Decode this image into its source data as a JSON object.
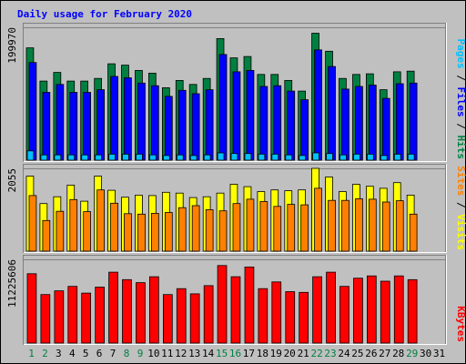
{
  "chart_data": {
    "type": "bar",
    "title": "Daily usage for February 2020",
    "x": [
      1,
      2,
      3,
      4,
      5,
      6,
      7,
      8,
      9,
      10,
      11,
      12,
      13,
      14,
      15,
      16,
      17,
      18,
      19,
      20,
      21,
      22,
      23,
      24,
      25,
      26,
      27,
      28,
      29,
      30,
      31
    ],
    "weekend_days": [
      1,
      2,
      8,
      9,
      15,
      16,
      22,
      23,
      29
    ],
    "panels": [
      {
        "id": "hits-panel",
        "ytick": "199970",
        "ymax": 199970,
        "right_labels": [
          {
            "text": "Hits",
            "color": "#008040"
          },
          {
            "text": "Files",
            "color": "#0000ff"
          },
          {
            "text": "Pages",
            "color": "#00c0ff"
          }
        ],
        "series": [
          {
            "name": "Hits",
            "color": "#008040",
            "values": [
              169000,
              119000,
              132000,
              119000,
              119000,
              123000,
              145000,
              143000,
              135000,
              131000,
              109000,
              120000,
              114000,
              123000,
              183000,
              154000,
              156000,
              129000,
              129000,
              120000,
              104000,
              191000,
              164000,
              123000,
              129000,
              130000,
              106000,
              133000,
              134000,
              null,
              null
            ]
          },
          {
            "name": "Files",
            "color": "#0000ff",
            "values": [
              147000,
              102000,
              114000,
              102000,
              102000,
              106000,
              126000,
              124000,
              116000,
              112000,
              96000,
              105000,
              100000,
              106000,
              159000,
              133000,
              135000,
              111000,
              112000,
              104000,
              91000,
              166000,
              141000,
              107000,
              111000,
              113000,
              93000,
              115000,
              116000,
              null,
              null
            ]
          },
          {
            "name": "Pages",
            "color": "#00c0ff",
            "values": [
              14000,
              8000,
              8000,
              8000,
              8000,
              8000,
              9000,
              9000,
              9000,
              8000,
              7000,
              8000,
              7000,
              8000,
              11000,
              10000,
              10000,
              9000,
              9000,
              8000,
              7000,
              11000,
              10000,
              8000,
              9000,
              9000,
              7000,
              9000,
              9000,
              null,
              null
            ]
          }
        ]
      },
      {
        "id": "visits-panel",
        "ytick": "2055",
        "ymax": 2055,
        "right_labels": [
          {
            "text": "Visits",
            "color": "#ffff00"
          },
          {
            "text": "Sites",
            "color": "#ff8000"
          }
        ],
        "series": [
          {
            "name": "Visits",
            "color": "#ffff00",
            "values": [
              1860,
              1180,
              1350,
              1640,
              1240,
              1860,
              1510,
              1340,
              1390,
              1380,
              1460,
              1440,
              1330,
              1350,
              1440,
              1660,
              1600,
              1480,
              1520,
              1500,
              1520,
              2055,
              1840,
              1480,
              1660,
              1610,
              1560,
              1700,
              1390,
              null,
              null
            ]
          },
          {
            "name": "Sites",
            "color": "#ff8000",
            "values": [
              1380,
              760,
              990,
              1280,
              980,
              1520,
              1190,
              930,
              920,
              940,
              960,
              1080,
              1130,
              1030,
              1000,
              1180,
              1290,
              1230,
              1110,
              1160,
              1150,
              1560,
              1260,
              1260,
              1300,
              1290,
              1220,
              1250,
              920,
              null,
              null
            ]
          }
        ]
      },
      {
        "id": "kbytes-panel",
        "ytick": "11225606",
        "ymax": 11225606,
        "right_labels": [
          {
            "text": "KBytes",
            "color": "#ff0000"
          }
        ],
        "series": [
          {
            "name": "KBytes",
            "color": "#ff0000",
            "values": [
              9300000,
              6500000,
              7000000,
              7600000,
              6700000,
              7500000,
              9500000,
              8500000,
              8100000,
              8900000,
              6500000,
              7300000,
              6600000,
              7700000,
              10400000,
              8900000,
              10200000,
              7300000,
              8200000,
              6900000,
              6800000,
              8900000,
              9500000,
              7600000,
              8700000,
              9000000,
              8300000,
              9000000,
              8500000,
              null,
              null
            ]
          }
        ]
      }
    ],
    "x_colors": {
      "weekday": "#000000",
      "weekend": "#008040"
    },
    "style": {
      "background": "#c0c0c0",
      "plot_background": "#c0c0c0",
      "title_color": "#0000ff",
      "grid_color": "#ffffff"
    }
  }
}
